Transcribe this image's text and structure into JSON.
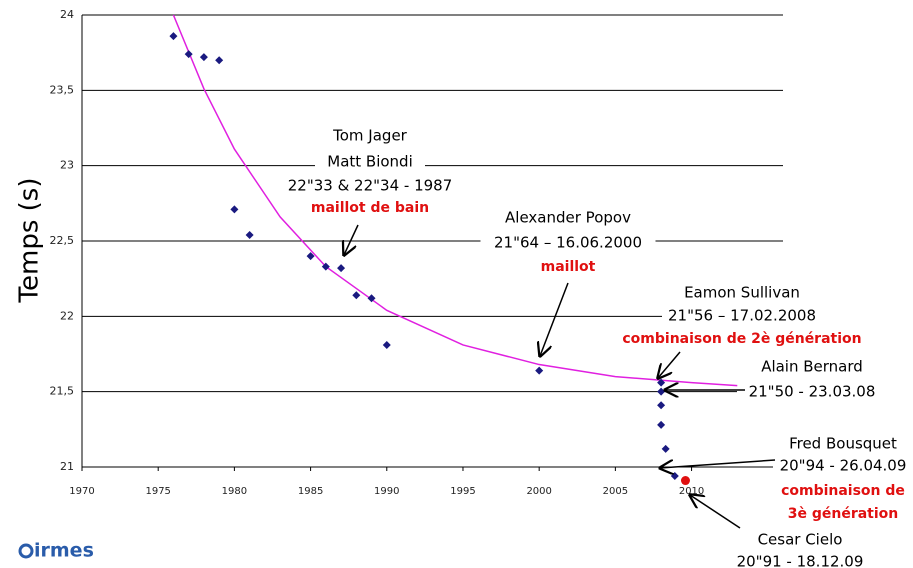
{
  "chart_data": {
    "type": "scatter",
    "y_label": "Temps (s)",
    "xlim": [
      1970,
      2016
    ],
    "ylim": [
      21,
      24
    ],
    "xticks": [
      1970,
      1975,
      1980,
      1985,
      1990,
      1995,
      2000,
      2005,
      2010
    ],
    "yticks": [
      21,
      {
        "value": 21.5,
        "label": "21,5"
      },
      22,
      {
        "value": 22.5,
        "label": "22,5"
      },
      23,
      {
        "value": 23.5,
        "label": "23,5"
      },
      24
    ],
    "grid": true,
    "color": "#1a1a80",
    "x": [
      1976,
      1977,
      1978,
      1979,
      1980,
      1981,
      1985,
      1986,
      1987,
      1988,
      1989,
      1990,
      2000,
      2008,
      2008,
      2008,
      2008,
      2008.3,
      2008.9
    ],
    "values": [
      23.86,
      23.74,
      23.72,
      23.7,
      22.71,
      22.54,
      22.4,
      22.33,
      22.32,
      22.14,
      22.12,
      21.81,
      21.64,
      21.56,
      21.5,
      21.41,
      21.28,
      21.12,
      20.94
    ],
    "highlight": {
      "x": 2009.6,
      "value": 20.91,
      "color": "#e01010"
    },
    "trend": {
      "color": "#e020e0",
      "x": [
        1976,
        1978,
        1980,
        1983,
        1986,
        1990,
        1995,
        2000,
        2005,
        2010,
        2013
      ],
      "values": [
        24.0,
        23.51,
        23.11,
        22.66,
        22.33,
        22.04,
        21.81,
        21.68,
        21.6,
        21.56,
        21.54
      ]
    },
    "annotations": [
      [
        {
          "text": "Tom Jager",
          "color": "#000"
        },
        {
          "text": "Matt Biondi",
          "color": "#000"
        },
        {
          "text": "22\"33 & 22\"34 - 1987",
          "color": "#000"
        },
        {
          "text": "maillot de bain",
          "color": "#e01010"
        }
      ],
      [
        {
          "text": "Alexander Popov",
          "color": "#000"
        },
        {
          "text": "21\"64 – 16.06.2000",
          "color": "#000"
        },
        {
          "text": "maillot",
          "color": "#e01010"
        }
      ],
      [
        {
          "text": "Eamon Sullivan",
          "color": "#000"
        },
        {
          "text": "21\"56 – 17.02.2008",
          "color": "#000"
        },
        {
          "text": "combinaison de 2è génération",
          "color": "#e01010"
        }
      ],
      [
        {
          "text": "Alain Bernard",
          "color": "#000"
        },
        {
          "text": "21\"50 - 23.03.08",
          "color": "#000"
        }
      ],
      [
        {
          "text": "Fred Bousquet",
          "color": "#000"
        },
        {
          "text": "20\"94 - 26.04.09",
          "color": "#000"
        },
        {
          "text": "combinaison de",
          "color": "#e01010"
        },
        {
          "text": "3è génération",
          "color": "#e01010"
        }
      ],
      [
        {
          "text": "Cesar Cielo",
          "color": "#000"
        },
        {
          "text": "20\"91 - 18.12.09",
          "color": "#000"
        }
      ]
    ]
  },
  "logo": "irmes"
}
